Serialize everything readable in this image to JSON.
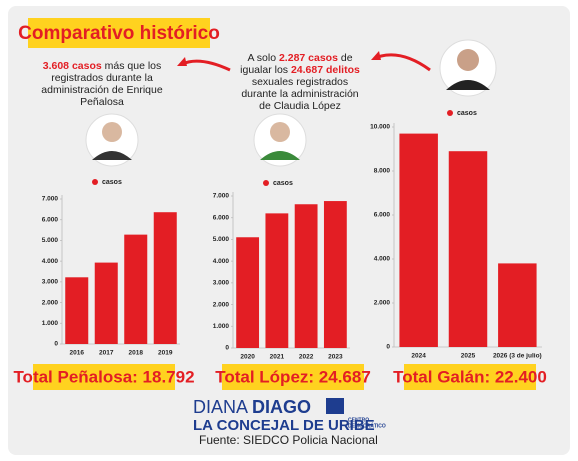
{
  "header": {
    "title": "Comparativo histórico"
  },
  "annotations": [
    {
      "lines": [
        [
          "3.608 casos",
          " más que los"
        ],
        [
          "registrados durante la"
        ],
        [
          "administración de Enrique"
        ],
        [
          "Peñalosa"
        ]
      ]
    },
    {
      "lines": [
        [
          "A solo ",
          "2.287 casos",
          " de"
        ],
        [
          "igualar los ",
          "24.687 delitos"
        ],
        [
          "sexuales registrados"
        ],
        [
          "durante la administración"
        ],
        [
          "de Claudia López"
        ]
      ]
    }
  ],
  "chart_data": [
    {
      "type": "bar",
      "categories": [
        "2016",
        "2017",
        "2018",
        "2019"
      ],
      "series": [
        {
          "name": "casos",
          "color": "#e31e24",
          "values": [
            3220,
            3930,
            5280,
            6362
          ]
        }
      ],
      "ylim": [
        0,
        7000
      ],
      "yticks": [
        0,
        {
          "value": 1000,
          "label": "1.000"
        },
        {
          "value": 2000,
          "label": "2.000"
        },
        {
          "value": 3000,
          "label": "3.000"
        },
        {
          "value": 4000,
          "label": "4.000"
        },
        {
          "value": 5000,
          "label": "5.000"
        },
        {
          "value": 6000,
          "label": "6.000"
        },
        {
          "value": 7000,
          "label": "7.000"
        }
      ],
      "total": "Total Peñalosa: 18.792"
    },
    {
      "type": "bar",
      "categories": [
        "2020",
        "2021",
        "2022",
        "2023"
      ],
      "series": [
        {
          "name": "casos",
          "color": "#e31e24",
          "values": [
            5100,
            6200,
            6620,
            6767
          ]
        }
      ],
      "ylim": [
        0,
        7000
      ],
      "yticks": [
        0,
        {
          "value": 1000,
          "label": "1.000"
        },
        {
          "value": 2000,
          "label": "2.000"
        },
        {
          "value": 3000,
          "label": "3.000"
        },
        {
          "value": 4000,
          "label": "4.000"
        },
        {
          "value": 5000,
          "label": "5.000"
        },
        {
          "value": 6000,
          "label": "6.000"
        },
        {
          "value": 7000,
          "label": "7.000"
        }
      ],
      "total": "Total López: 24.687"
    },
    {
      "type": "bar",
      "categories": [
        "2024",
        "2025",
        "2026 (3 de julio)"
      ],
      "series": [
        {
          "name": "casos",
          "color": "#e31e24",
          "values": [
            9700,
            8900,
            3800
          ]
        }
      ],
      "ylim": [
        0,
        10000
      ],
      "yticks": [
        0,
        {
          "value": 2000,
          "label": "2.000"
        },
        {
          "value": 4000,
          "label": "4.000"
        },
        {
          "value": 6000,
          "label": "6.000"
        },
        {
          "value": 8000,
          "label": "8.000"
        },
        {
          "value": 10000,
          "label": "10.000"
        }
      ],
      "total": "Total Galán: 22.400"
    }
  ],
  "footer": {
    "name_light": "DIANA",
    "name_bold": "DIAGO",
    "role": "LA CONCEJAL DE URIBE",
    "party": [
      "CENTRO",
      "DEMOCRÁTICO"
    ],
    "source": "Fuente: SIEDCO Policia Nacional"
  }
}
